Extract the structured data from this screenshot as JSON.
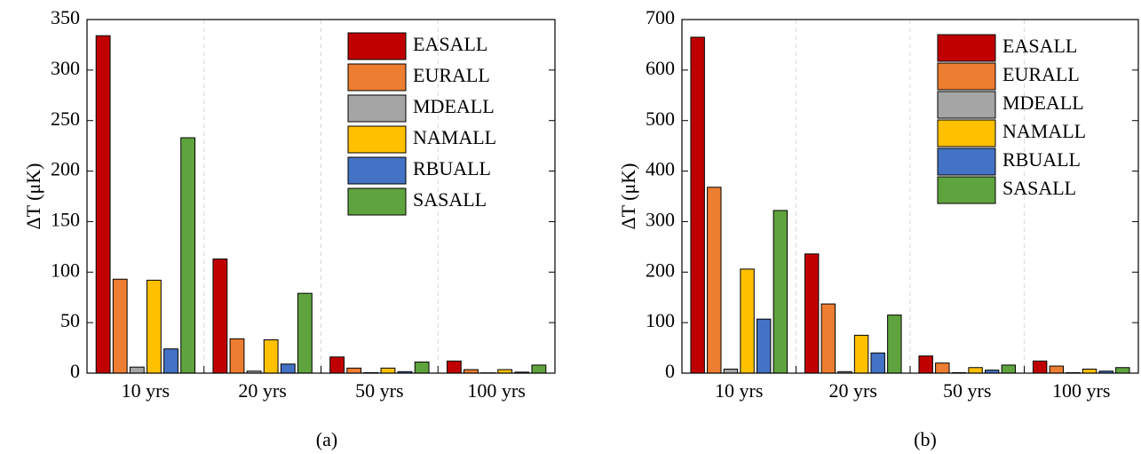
{
  "chart_data": [
    {
      "type": "bar",
      "ylabel": "ΔT (μK)",
      "caption": "(a)",
      "categories": [
        "10 yrs",
        "20 yrs",
        "50 yrs",
        "100 yrs"
      ],
      "ylim": [
        0,
        350
      ],
      "yticks": [
        0,
        50,
        100,
        150,
        200,
        250,
        300,
        350
      ],
      "grid": true,
      "series": [
        {
          "name": "EASALL",
          "color": "#c00000",
          "values": [
            334,
            113,
            16,
            12
          ]
        },
        {
          "name": "EURALL",
          "color": "#ed7d31",
          "values": [
            93,
            34,
            5,
            3.5
          ]
        },
        {
          "name": "MDEALL",
          "color": "#a5a5a5",
          "values": [
            6,
            2,
            0.5,
            0.3
          ]
        },
        {
          "name": "NAMALL",
          "color": "#ffc000",
          "values": [
            92,
            33,
            5,
            3.5
          ]
        },
        {
          "name": "RBUALL",
          "color": "#4472c4",
          "values": [
            24,
            9,
            1.5,
            1
          ]
        },
        {
          "name": "SASALL",
          "color": "#5fa33e",
          "values": [
            233,
            79,
            11,
            8
          ]
        }
      ]
    },
    {
      "type": "bar",
      "ylabel": "ΔT (μK)",
      "caption": "(b)",
      "categories": [
        "10 yrs",
        "20 yrs",
        "50 yrs",
        "100 yrs"
      ],
      "ylim": [
        0,
        700
      ],
      "yticks": [
        0,
        100,
        200,
        300,
        400,
        500,
        600,
        700
      ],
      "grid": true,
      "series": [
        {
          "name": "EASALL",
          "color": "#c00000",
          "values": [
            665,
            236,
            34,
            24
          ]
        },
        {
          "name": "EURALL",
          "color": "#ed7d31",
          "values": [
            368,
            137,
            20,
            14
          ]
        },
        {
          "name": "MDEALL",
          "color": "#a5a5a5",
          "values": [
            8,
            3,
            1,
            1
          ]
        },
        {
          "name": "NAMALL",
          "color": "#ffc000",
          "values": [
            206,
            75,
            11,
            8
          ]
        },
        {
          "name": "RBUALL",
          "color": "#4472c4",
          "values": [
            107,
            40,
            6,
            4
          ]
        },
        {
          "name": "SASALL",
          "color": "#5fa33e",
          "values": [
            322,
            115,
            16,
            11
          ]
        }
      ]
    }
  ]
}
